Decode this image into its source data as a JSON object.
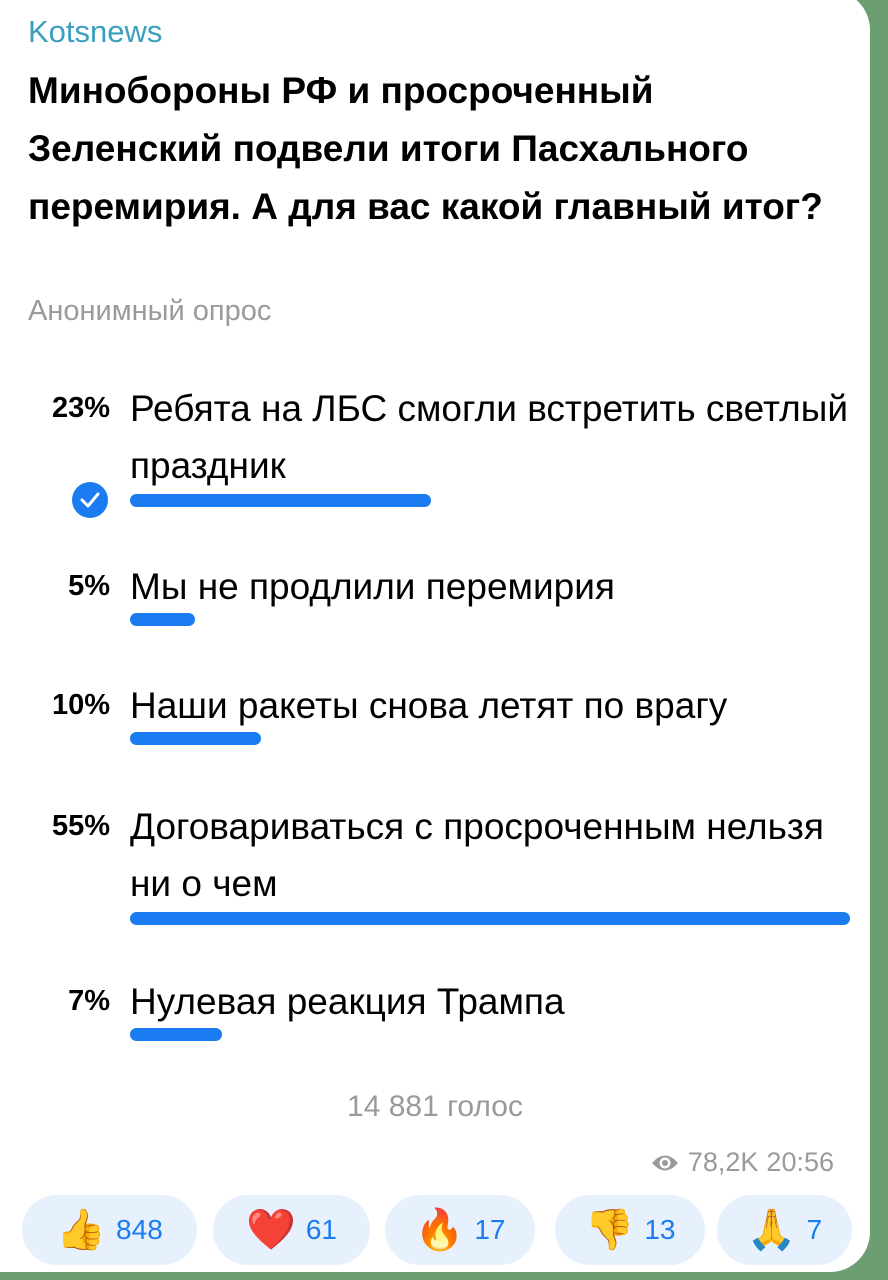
{
  "message": {
    "sender": "Kotsnews",
    "question": "Минобороны РФ и просроченный Зеленский подвели итоги Пасхального перемирия. А для вас какой главный итог?",
    "poll_type": "Анонимный опрос",
    "options": [
      {
        "percent_label": "23%",
        "percent": 23,
        "text": "Ребята на ЛБС смогли встретить светлый праздник",
        "chosen": true
      },
      {
        "percent_label": "5%",
        "percent": 5,
        "text": "Мы не продлили перемирия",
        "chosen": false
      },
      {
        "percent_label": "10%",
        "percent": 10,
        "text": "Наши ракеты снова летят по врагу",
        "chosen": false
      },
      {
        "percent_label": "55%",
        "percent": 55,
        "text": "Договариваться с просроченным нельзя ни о чем",
        "chosen": false
      },
      {
        "percent_label": "7%",
        "percent": 7,
        "text": "Нулевая реакция Трампа",
        "chosen": false
      }
    ],
    "votes": "14 881 голос",
    "views": "78,2K",
    "time": "20:56",
    "reactions": [
      {
        "icon": "thumbs-up-icon",
        "emoji": "👍",
        "count": "848"
      },
      {
        "icon": "heart-icon",
        "emoji": "❤️",
        "count": "61"
      },
      {
        "icon": "fire-icon",
        "emoji": "🔥",
        "count": "17"
      },
      {
        "icon": "thumbs-down-icon",
        "emoji": "👎",
        "count": "13"
      },
      {
        "icon": "folded-hands-icon",
        "emoji": "🙏",
        "count": "7"
      }
    ]
  },
  "colors": {
    "accent": "#1a7cf0",
    "sender": "#3a9fbf",
    "reaction_bg": "#e6f1fd"
  }
}
